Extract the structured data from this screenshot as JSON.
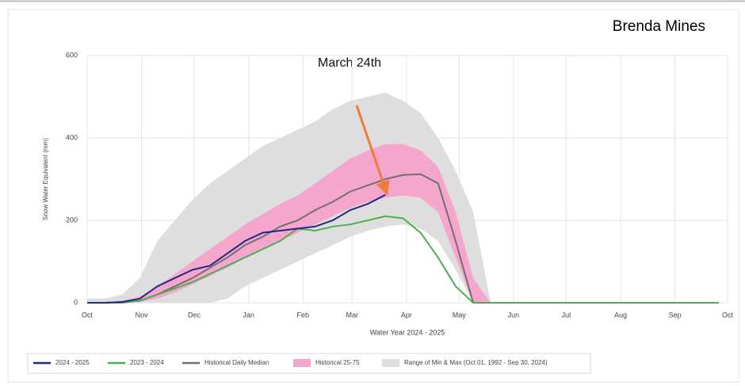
{
  "chart_data": {
    "type": "line",
    "title": "Brenda Mines",
    "annotation": "March 24th",
    "xlabel": "Water Year 2024 - 2025",
    "ylabel": "Snow Water Equivalent (mm)",
    "x": [
      0,
      10,
      20,
      30,
      40,
      50,
      60,
      70,
      80,
      90,
      100,
      110,
      120,
      130,
      140,
      150,
      160,
      170,
      180,
      190,
      200,
      210,
      220,
      230,
      240,
      250,
      260,
      270,
      280,
      290,
      300,
      310,
      320,
      330,
      340,
      350,
      360
    ],
    "xlim": [
      0,
      365
    ],
    "xticks": [
      {
        "value": 0,
        "label": "Oct"
      },
      {
        "value": 31,
        "label": "Nov"
      },
      {
        "value": 61,
        "label": "Dec"
      },
      {
        "value": 92,
        "label": "Jan"
      },
      {
        "value": 123,
        "label": "Feb"
      },
      {
        "value": 151,
        "label": "Mar"
      },
      {
        "value": 182,
        "label": "Apr"
      },
      {
        "value": 212,
        "label": "May"
      },
      {
        "value": 243,
        "label": "Jun"
      },
      {
        "value": 273,
        "label": "Jul"
      },
      {
        "value": 304,
        "label": "Aug"
      },
      {
        "value": 335,
        "label": "Sep"
      },
      {
        "value": 365,
        "label": "Oct"
      }
    ],
    "ylim": [
      0,
      600
    ],
    "yticks": [
      0,
      200,
      400,
      600
    ],
    "grid": true,
    "legend": "bottom",
    "bands": [
      {
        "name": "Range of Min & Max (Oct 01, 1992 - Sep 30, 2024)",
        "color": "#dedede",
        "lower": [
          0,
          0,
          0,
          0,
          0,
          0,
          0,
          0,
          10,
          40,
          60,
          80,
          100,
          120,
          140,
          160,
          175,
          185,
          190,
          180,
          150,
          80,
          0,
          0,
          0,
          0,
          0,
          0,
          0,
          0,
          0,
          0,
          0,
          0,
          0,
          0,
          0
        ],
        "upper": [
          10,
          10,
          20,
          60,
          150,
          200,
          250,
          290,
          320,
          350,
          380,
          400,
          420,
          440,
          470,
          490,
          500,
          510,
          490,
          460,
          400,
          320,
          220,
          0,
          0,
          0,
          0,
          0,
          0,
          0,
          0,
          0,
          0,
          0,
          0,
          0,
          0
        ]
      },
      {
        "name": "Historical 25-75",
        "color": "#f4a6cc",
        "lower": [
          0,
          0,
          0,
          2,
          10,
          25,
          45,
          65,
          85,
          110,
          130,
          150,
          170,
          190,
          210,
          230,
          245,
          255,
          260,
          255,
          220,
          110,
          0,
          0,
          0,
          0,
          0,
          0,
          0,
          0,
          0,
          0,
          0,
          0,
          0,
          0,
          0
        ],
        "upper": [
          0,
          0,
          5,
          15,
          40,
          70,
          100,
          130,
          160,
          190,
          215,
          240,
          260,
          290,
          320,
          350,
          370,
          385,
          385,
          370,
          330,
          220,
          60,
          0,
          0,
          0,
          0,
          0,
          0,
          0,
          0,
          0,
          0,
          0,
          0,
          0,
          0
        ]
      }
    ],
    "series": [
      {
        "name": "Historical Daily Median",
        "color": "#707070",
        "values": [
          0,
          0,
          2,
          5,
          20,
          40,
          60,
          85,
          110,
          140,
          160,
          185,
          200,
          225,
          245,
          270,
          285,
          300,
          310,
          312,
          290,
          150,
          0,
          0,
          0,
          0,
          0,
          0,
          0,
          0,
          0,
          0,
          0,
          0,
          0,
          0,
          0
        ]
      },
      {
        "name": "2023 - 2024",
        "color": "#4caf50",
        "values": [
          0,
          0,
          0,
          5,
          20,
          35,
          50,
          70,
          90,
          110,
          130,
          150,
          180,
          175,
          185,
          190,
          200,
          210,
          205,
          170,
          110,
          40,
          0,
          0,
          0,
          0,
          0,
          0,
          0,
          0,
          0,
          0,
          0,
          0,
          0,
          0,
          0
        ]
      },
      {
        "name": "2024 - 2025",
        "color": "#1f2a80",
        "values": [
          0,
          0,
          2,
          10,
          40,
          60,
          80,
          90,
          120,
          150,
          170,
          175,
          180,
          185,
          200,
          225,
          240,
          262,
          null,
          null,
          null,
          null,
          null,
          null,
          null,
          null,
          null,
          null,
          null,
          null,
          null,
          null,
          null,
          null,
          null,
          null,
          null
        ]
      }
    ]
  }
}
